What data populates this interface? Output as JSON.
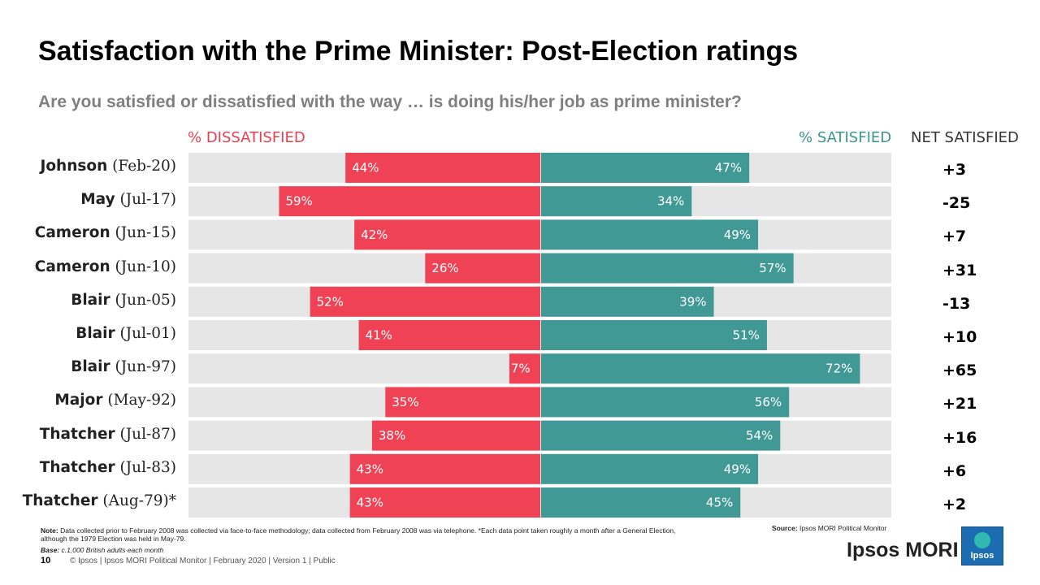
{
  "title": "Satisfaction with the Prime Minister: Post-Election ratings",
  "subtitle": "Are you satisfied or dissatisfied with the way … is doing his/her job as prime minister?",
  "headers": {
    "dissatisfied": "% DISSATISFIED",
    "satisfied": "% SATISFIED",
    "net": "NET SATISFIED"
  },
  "colors": {
    "dissatisfied": "#ef4255",
    "satisfied": "#419996",
    "track": "#e6e6e6"
  },
  "chart_data": {
    "type": "bar",
    "orientation": "horizontal-diverging",
    "categories": [
      "Johnson (Feb-20)",
      "May (Jul-17)",
      "Cameron (Jun-15)",
      "Cameron (Jun-10)",
      "Blair (Jun-05)",
      "Blair (Jul-01)",
      "Blair (Jun-97)",
      "Major (May-92)",
      "Thatcher (Jul-87)",
      "Thatcher (Jul-83)",
      "Thatcher (Aug-79)*"
    ],
    "rows": [
      {
        "name": "Johnson",
        "date": "(Feb-20)",
        "dissatisfied": 44,
        "satisfied": 47,
        "dis_label": "44%",
        "sat_label": "47%",
        "net": "+3"
      },
      {
        "name": "May",
        "date": "(Jul-17)",
        "dissatisfied": 59,
        "satisfied": 34,
        "dis_label": "59%",
        "sat_label": "34%",
        "net": "-25"
      },
      {
        "name": "Cameron",
        "date": "(Jun-15)",
        "dissatisfied": 42,
        "satisfied": 49,
        "dis_label": "42%",
        "sat_label": "49%",
        "net": "+7"
      },
      {
        "name": "Cameron",
        "date": "(Jun-10)",
        "dissatisfied": 26,
        "satisfied": 57,
        "dis_label": "26%",
        "sat_label": "57%",
        "net": "+31"
      },
      {
        "name": "Blair",
        "date": "(Jun-05)",
        "dissatisfied": 52,
        "satisfied": 39,
        "dis_label": "52%",
        "sat_label": "39%",
        "net": "-13"
      },
      {
        "name": "Blair",
        "date": "(Jul-01)",
        "dissatisfied": 41,
        "satisfied": 51,
        "dis_label": "41%",
        "sat_label": "51%",
        "net": "+10"
      },
      {
        "name": "Blair",
        "date": "(Jun-97)",
        "dissatisfied": 7,
        "satisfied": 72,
        "dis_label": "7%",
        "sat_label": "72%",
        "net": "+65"
      },
      {
        "name": "Major",
        "date": "(May-92)",
        "dissatisfied": 35,
        "satisfied": 56,
        "dis_label": "35%",
        "sat_label": "56%",
        "net": "+21"
      },
      {
        "name": "Thatcher",
        "date": "(Jul-87)",
        "dissatisfied": 38,
        "satisfied": 54,
        "dis_label": "38%",
        "sat_label": "54%",
        "net": "+16"
      },
      {
        "name": "Thatcher",
        "date": "(Jul-83)",
        "dissatisfied": 43,
        "satisfied": 49,
        "dis_label": "43%",
        "sat_label": "49%",
        "net": "+6"
      },
      {
        "name": "Thatcher",
        "date": "(Aug-79)*",
        "dissatisfied": 43,
        "satisfied": 45,
        "dis_label": "43%",
        "sat_label": "45%",
        "net": "+2"
      }
    ],
    "xlim": [
      -100,
      100
    ]
  },
  "note": {
    "label": "Note:",
    "text": "Data collected prior to February 2008 was collected via face-to-face methodology; data collected from February 2008 was via telephone. *Each data point taken roughly a month after a General Election, although the 1979 Election was held in May-79.",
    "base_label": "Base:",
    "base_text": "c.1,000 British adults each month"
  },
  "source": {
    "label": "Source:",
    "text": "Ipsos MORI Political Monitor"
  },
  "footer": {
    "page_number": "10",
    "text": "© Ipsos | Ipsos MORI Political Monitor | February 2020 | Version 1 | Public"
  },
  "brand": {
    "name": "Ipsos MORI",
    "logo_text": "Ipsos"
  }
}
